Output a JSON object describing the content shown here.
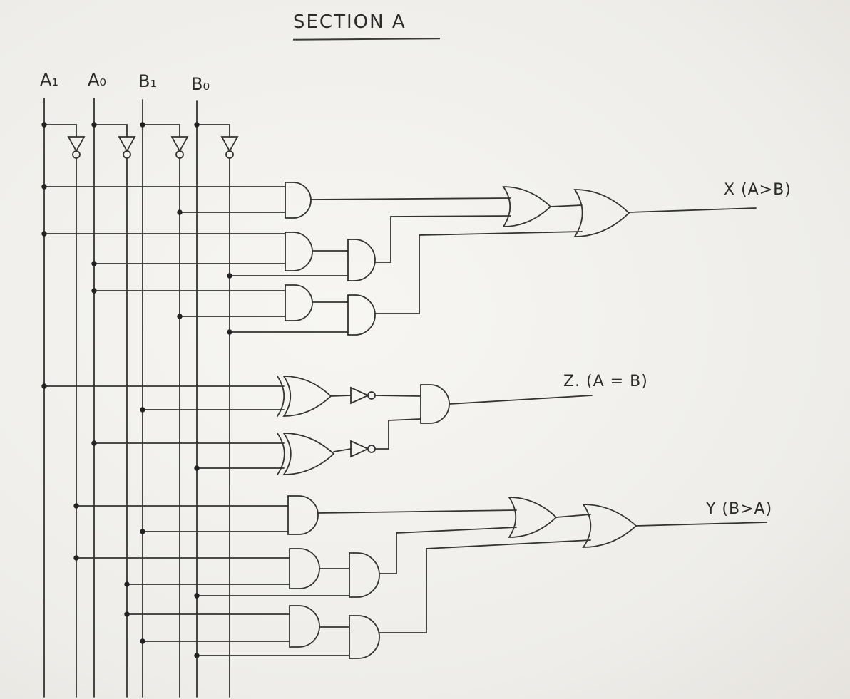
{
  "title": "SECTION A",
  "inputs": [
    "A₁",
    "A₀",
    "B₁",
    "B₀"
  ],
  "outputs": {
    "greater": "X (A>B)",
    "equal": "Z. (A = B)",
    "less": "Y (B>A)"
  },
  "gates": {
    "not_inputs": 4,
    "and_gates": 11,
    "or_gates": 4,
    "xor_gates": 2,
    "not_after_xor": 2
  }
}
